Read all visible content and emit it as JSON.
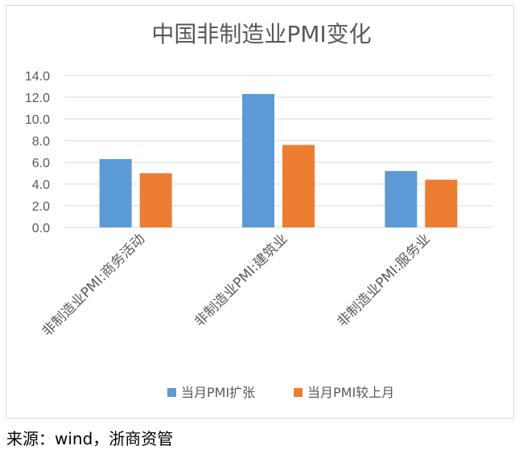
{
  "chart_data": {
    "type": "bar",
    "title": "中国非制造业PMI变化",
    "categories": [
      "非制造业PMI:商务活动",
      "非制造业PMI:建筑业",
      "非制造业PMI:服务业"
    ],
    "series": [
      {
        "name": "当月PMI扩张",
        "values": [
          6.3,
          12.3,
          5.2
        ],
        "color": "#5b9bd5"
      },
      {
        "name": "当月PMI较上月",
        "values": [
          5.0,
          7.6,
          4.4
        ],
        "color": "#ed7d31"
      }
    ],
    "ylim": [
      0,
      14
    ],
    "yticks": [
      "0.0",
      "2.0",
      "4.0",
      "6.0",
      "8.0",
      "10.0",
      "12.0",
      "14.0"
    ],
    "grid": true,
    "legend_position": "bottom"
  },
  "source": "来源：wind，浙商资管"
}
